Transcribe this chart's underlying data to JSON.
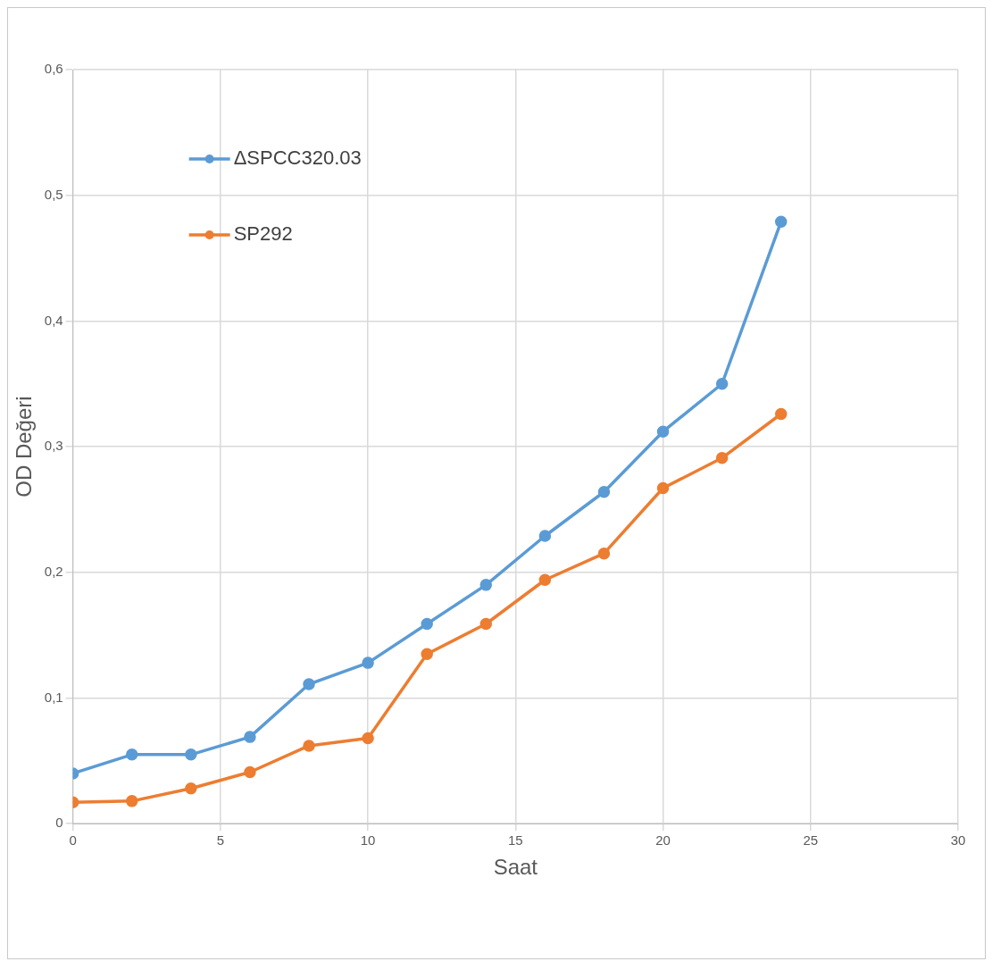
{
  "chart_data": {
    "type": "line",
    "xlabel": "Saat",
    "ylabel": "OD Değeri",
    "x": [
      0,
      2,
      4,
      6,
      8,
      10,
      12,
      14,
      16,
      18,
      20,
      22,
      24
    ],
    "series": [
      {
        "name": "ΔSPCC320.03",
        "color": "#5b9bd5",
        "values": [
          0.04,
          0.055,
          0.055,
          0.069,
          0.111,
          0.128,
          0.159,
          0.19,
          0.229,
          0.264,
          0.312,
          0.35,
          0.479
        ]
      },
      {
        "name": "SP292",
        "color": "#ed7d31",
        "values": [
          0.017,
          0.018,
          0.028,
          0.041,
          0.062,
          0.068,
          0.135,
          0.159,
          0.194,
          0.215,
          0.267,
          0.291,
          0.326
        ]
      }
    ],
    "xlim": [
      0,
      30
    ],
    "xticks": [
      0,
      5,
      10,
      15,
      20,
      25,
      30
    ],
    "ylim": [
      0,
      0.6
    ],
    "yticks": [
      0,
      {
        "value": 0.1,
        "label": "0,1"
      },
      {
        "value": 0.2,
        "label": "0,2"
      },
      {
        "value": 0.3,
        "label": "0,3"
      },
      {
        "value": 0.4,
        "label": "0,4"
      },
      {
        "value": 0.5,
        "label": "0,5"
      },
      {
        "value": 0.6,
        "label": "0,6"
      }
    ],
    "grid": true,
    "legend": "top left",
    "marker": "circle",
    "line_style": "solid"
  }
}
